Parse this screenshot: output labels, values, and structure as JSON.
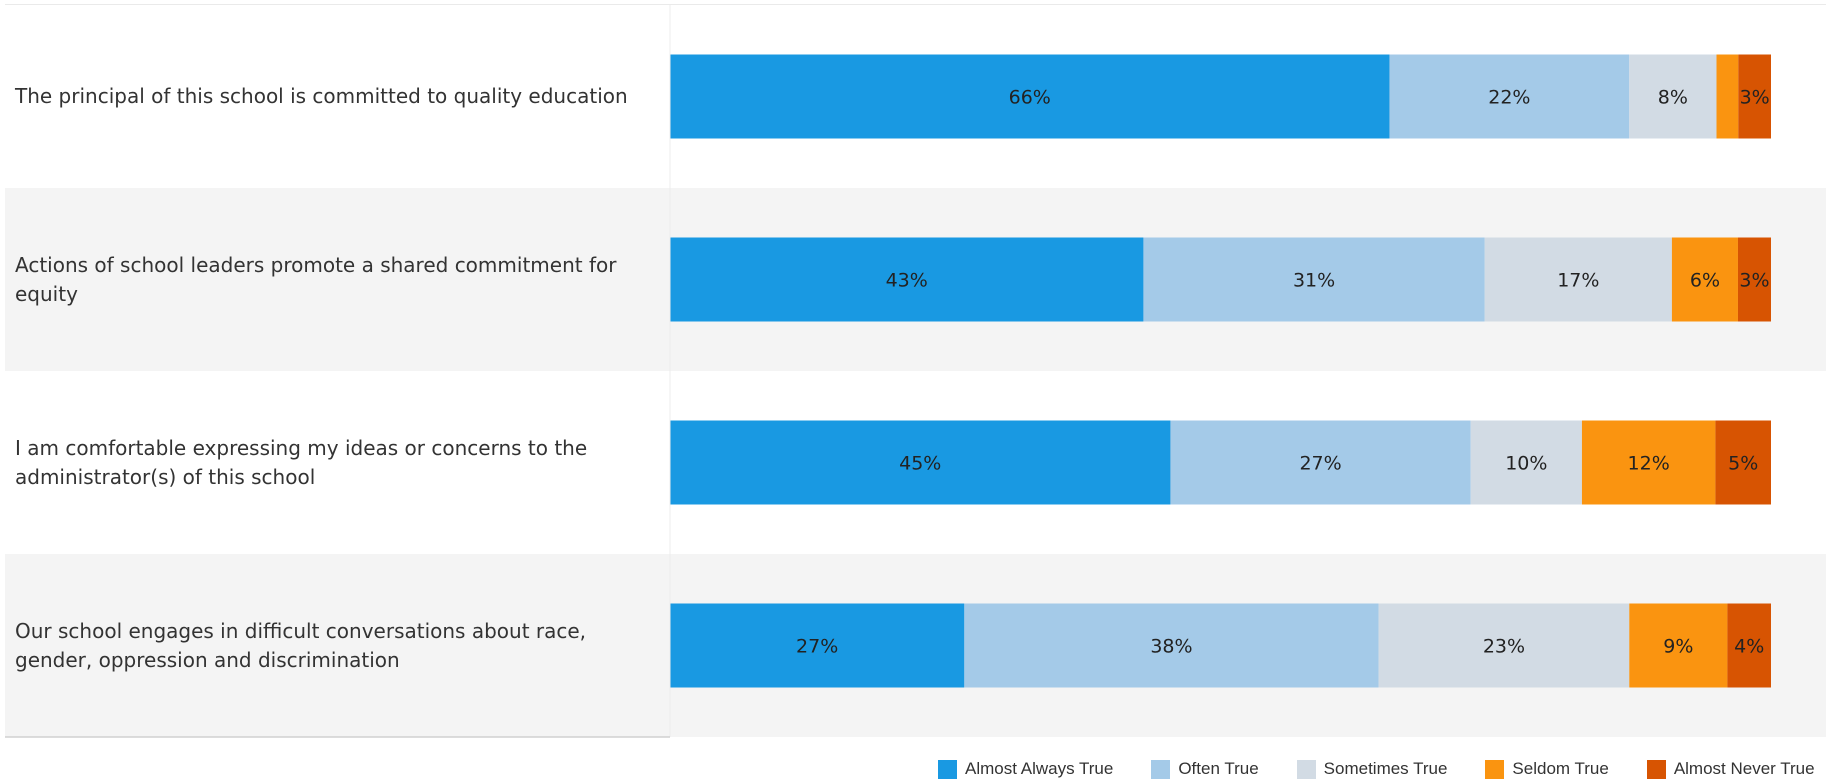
{
  "chart_data": {
    "type": "bar",
    "orientation": "horizontal",
    "stacked": true,
    "categories": [
      "The principal of this school is committed to quality education",
      "Actions of school leaders promote a shared commitment for equity",
      "I am comfortable expressing my ideas or concerns to the administrator(s) of this school",
      "Our school engages in difficult conversations about race, gender, oppression and discrimination"
    ],
    "series": [
      {
        "name": "Almost Always True",
        "color": "#1999E2",
        "values": [
          66,
          43,
          45,
          27
        ],
        "labels": [
          "66%",
          "43%",
          "45%",
          "27%"
        ]
      },
      {
        "name": "Often True",
        "color": "#A4CAE8",
        "values": [
          22,
          31,
          27,
          38
        ],
        "labels": [
          "22%",
          "31%",
          "27%",
          "38%"
        ]
      },
      {
        "name": "Sometimes True",
        "color": "#D2DBE4",
        "values": [
          8,
          17,
          10,
          23
        ],
        "labels": [
          "8%",
          "17%",
          "10%",
          "23%"
        ]
      },
      {
        "name": "Seldom True",
        "color": "#FA9410",
        "values": [
          2,
          6,
          12,
          9
        ],
        "labels": [
          "",
          "6%",
          "12%",
          "9%"
        ]
      },
      {
        "name": "Almost Never True",
        "color": "#D75402",
        "values": [
          3,
          3,
          5,
          4
        ],
        "labels": [
          "3%",
          "3%",
          "5%",
          "4%"
        ]
      }
    ],
    "xlim": [
      0,
      100
    ],
    "legend_position": "bottom-right",
    "grid": false,
    "row_shading": [
      "#ffffff",
      "#f4f4f4",
      "#ffffff",
      "#f4f4f4"
    ]
  }
}
